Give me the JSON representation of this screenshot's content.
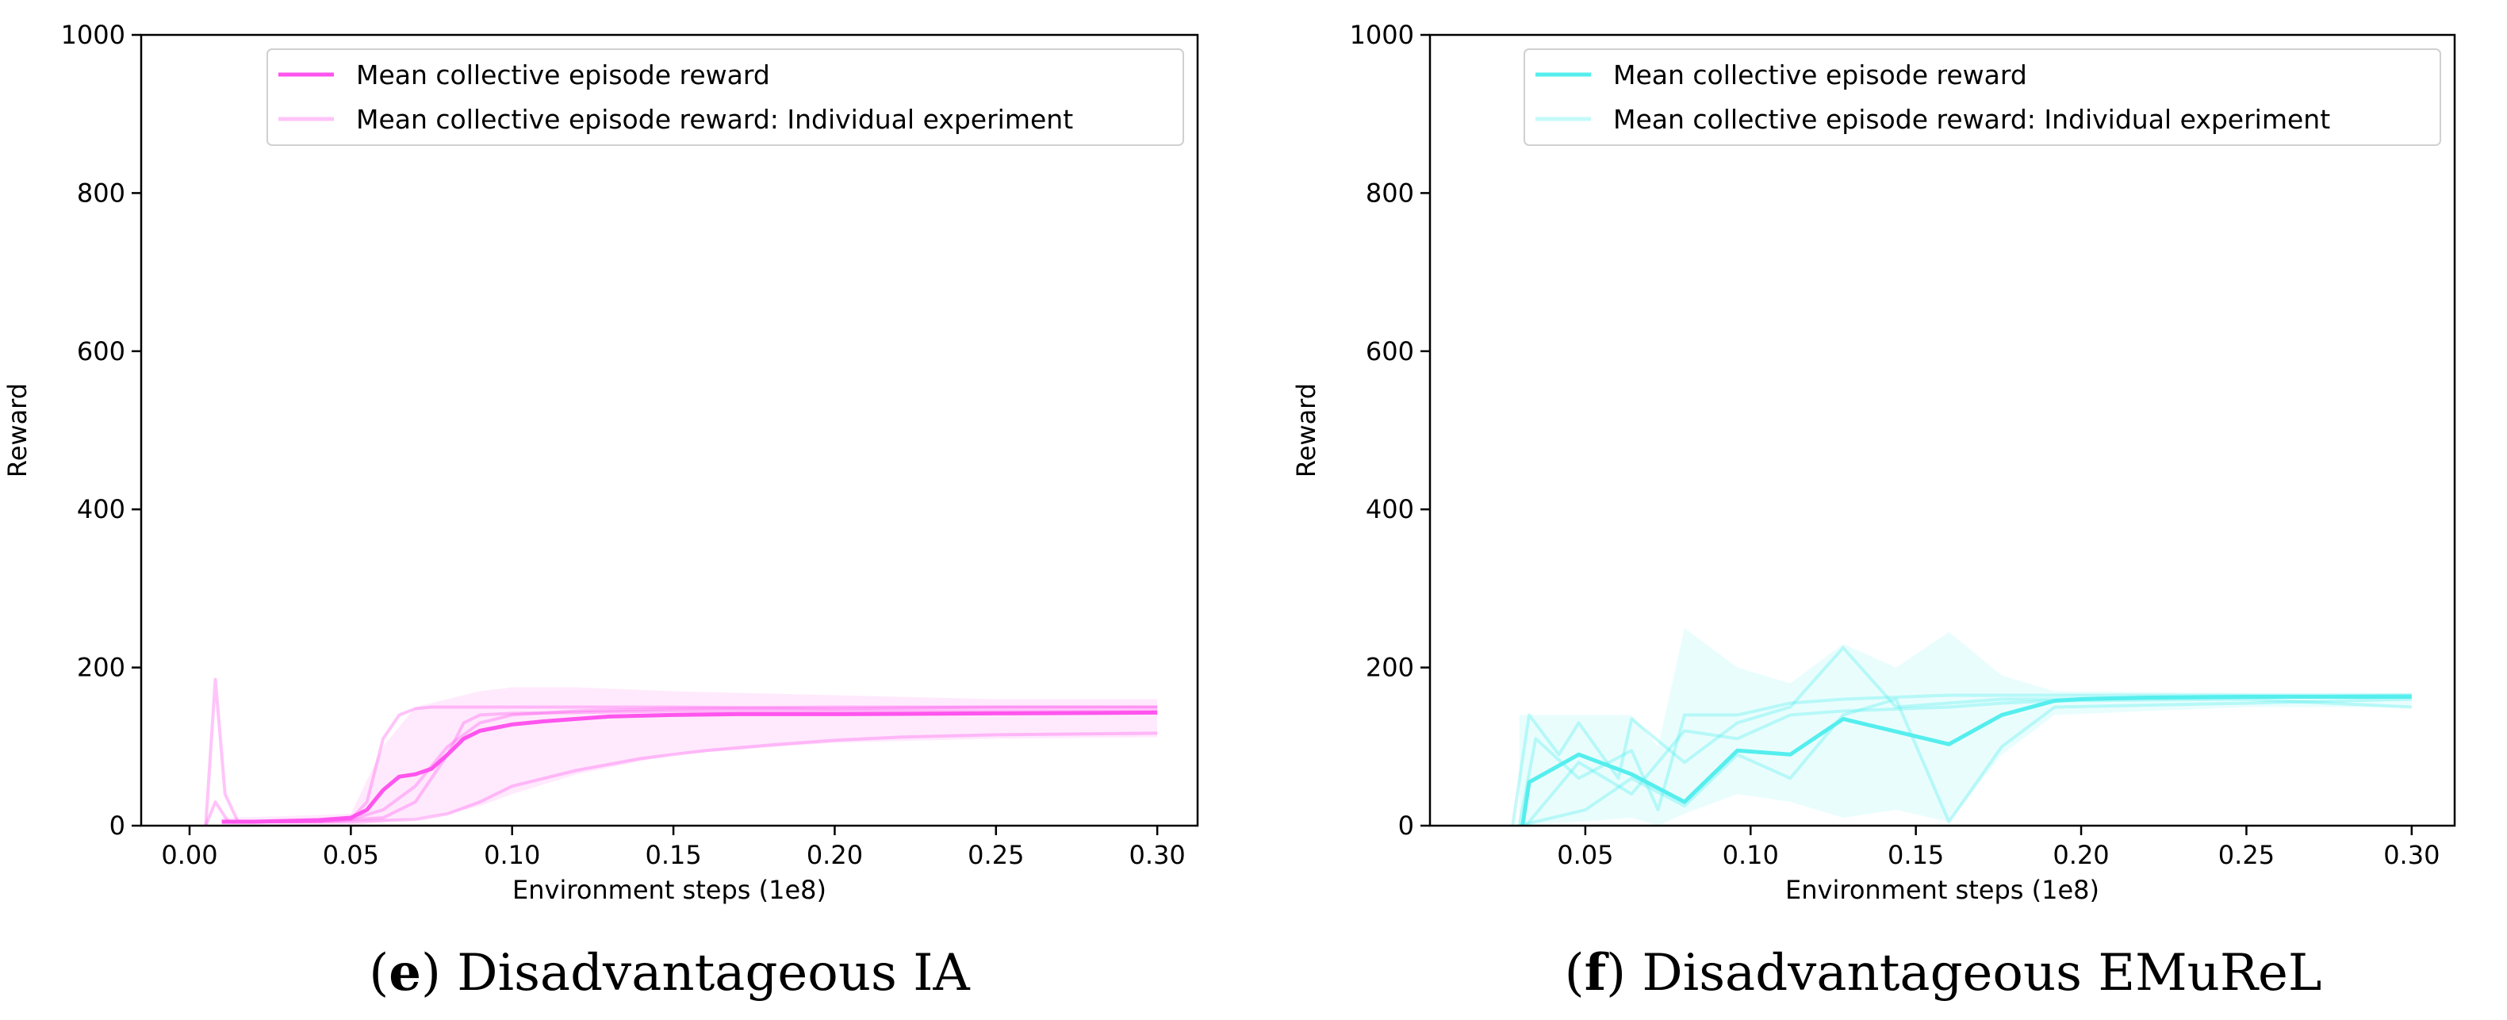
{
  "chart_data": [
    {
      "type": "line",
      "panel": "e",
      "caption_letter": "e",
      "caption_text": "Disadvantageous IA",
      "xlabel": "Environment steps (1e8)",
      "ylabel": "Reward",
      "xlim": [
        -0.015,
        0.3125
      ],
      "ylim": [
        0,
        1000
      ],
      "xticks": [
        0.0,
        0.05,
        0.1,
        0.15,
        0.2,
        0.25,
        0.3
      ],
      "xtick_labels": [
        "0.00",
        "0.05",
        "0.10",
        "0.15",
        "0.20",
        "0.25",
        "0.30"
      ],
      "yticks": [
        0,
        200,
        400,
        600,
        800,
        1000
      ],
      "ytick_labels": [
        "0",
        "200",
        "400",
        "600",
        "800",
        "1000"
      ],
      "color": "#ff55ee",
      "legend": [
        "Mean collective episode reward",
        "Mean collective episode reward: Individual experiment"
      ],
      "legend_position": "top-right",
      "mean": {
        "name": "Mean collective episode reward",
        "x": [
          0.01,
          0.02,
          0.03,
          0.04,
          0.05,
          0.055,
          0.06,
          0.065,
          0.07,
          0.075,
          0.08,
          0.085,
          0.09,
          0.1,
          0.11,
          0.12,
          0.13,
          0.15,
          0.17,
          0.2,
          0.25,
          0.3
        ],
        "y": [
          5,
          5,
          6,
          7,
          10,
          20,
          45,
          62,
          65,
          72,
          90,
          110,
          120,
          128,
          132,
          135,
          138,
          140,
          141,
          141,
          142,
          143
        ]
      },
      "individual": [
        {
          "name": "run1",
          "x": [
            0.005,
            0.008,
            0.012,
            0.02,
            0.03,
            0.04,
            0.05,
            0.055,
            0.06,
            0.065,
            0.07,
            0.075,
            0.08,
            0.1,
            0.15,
            0.2,
            0.25,
            0.3
          ],
          "y": [
            0,
            30,
            5,
            5,
            5,
            5,
            8,
            30,
            110,
            140,
            148,
            150,
            150,
            150,
            150,
            148,
            150,
            150
          ]
        },
        {
          "name": "run2",
          "x": [
            0.01,
            0.03,
            0.05,
            0.06,
            0.07,
            0.08,
            0.09,
            0.1,
            0.12,
            0.15,
            0.2,
            0.25,
            0.3
          ],
          "y": [
            5,
            5,
            8,
            20,
            50,
            100,
            130,
            140,
            145,
            148,
            150,
            150,
            150
          ]
        },
        {
          "name": "run3",
          "x": [
            0.01,
            0.04,
            0.06,
            0.07,
            0.08,
            0.085,
            0.09,
            0.1,
            0.15,
            0.2,
            0.25,
            0.3
          ],
          "y": [
            5,
            5,
            10,
            30,
            90,
            130,
            140,
            142,
            145,
            145,
            145,
            145
          ]
        },
        {
          "name": "run4",
          "x": [
            0.01,
            0.05,
            0.07,
            0.08,
            0.09,
            0.1,
            0.12,
            0.14,
            0.16,
            0.18,
            0.2,
            0.22,
            0.25,
            0.3
          ],
          "y": [
            5,
            5,
            8,
            15,
            30,
            50,
            70,
            85,
            95,
            102,
            108,
            112,
            115,
            117
          ]
        },
        {
          "name": "run5",
          "x": [
            0.005,
            0.008,
            0.011,
            0.015
          ],
          "y": [
            0,
            185,
            40,
            5
          ]
        }
      ],
      "band": {
        "x": [
          0.01,
          0.03,
          0.05,
          0.06,
          0.07,
          0.08,
          0.09,
          0.1,
          0.12,
          0.15,
          0.2,
          0.25,
          0.3
        ],
        "upper": [
          10,
          12,
          15,
          100,
          150,
          160,
          170,
          175,
          175,
          170,
          165,
          160,
          160
        ],
        "lower": [
          0,
          0,
          0,
          5,
          10,
          15,
          25,
          40,
          65,
          90,
          105,
          110,
          112
        ]
      }
    },
    {
      "type": "line",
      "panel": "f",
      "caption_letter": "f",
      "caption_text": "Disadvantageous EMuReL",
      "xlabel": "Environment steps (1e8)",
      "ylabel": "Reward",
      "xlim": [
        0.003,
        0.313
      ],
      "ylim": [
        0,
        1000
      ],
      "xticks": [
        0.05,
        0.1,
        0.15,
        0.2,
        0.25,
        0.3
      ],
      "xtick_labels": [
        "0.05",
        "0.10",
        "0.15",
        "0.20",
        "0.25",
        "0.30"
      ],
      "yticks": [
        0,
        200,
        400,
        600,
        800,
        1000
      ],
      "ytick_labels": [
        "0",
        "200",
        "400",
        "600",
        "800",
        "1000"
      ],
      "color": "#55eeee",
      "legend": [
        "Mean collective episode reward",
        "Mean collective episode reward: Individual experiment"
      ],
      "legend_position": "top-right",
      "mean": {
        "name": "Mean collective episode reward",
        "x": [
          0.031,
          0.033,
          0.048,
          0.064,
          0.08,
          0.096,
          0.112,
          0.128,
          0.16,
          0.176,
          0.192,
          0.2,
          0.22,
          0.25,
          0.3
        ],
        "y": [
          0,
          55,
          90,
          65,
          30,
          95,
          90,
          135,
          103,
          140,
          158,
          160,
          162,
          163,
          163
        ]
      },
      "individual": [
        {
          "name": "run1",
          "x": [
            0.028,
            0.033,
            0.042,
            0.048,
            0.06,
            0.064,
            0.08,
            0.096,
            0.112,
            0.128,
            0.144,
            0.16,
            0.176,
            0.192,
            0.25,
            0.3
          ],
          "y": [
            0,
            140,
            90,
            130,
            60,
            135,
            80,
            130,
            150,
            225,
            150,
            155,
            160,
            160,
            162,
            165
          ]
        },
        {
          "name": "run2",
          "x": [
            0.03,
            0.035,
            0.048,
            0.064,
            0.072,
            0.08,
            0.096,
            0.112,
            0.128,
            0.16,
            0.176,
            0.192,
            0.25,
            0.3
          ],
          "y": [
            0,
            110,
            60,
            95,
            20,
            140,
            140,
            155,
            160,
            165,
            165,
            165,
            165,
            165
          ]
        },
        {
          "name": "run3",
          "x": [
            0.032,
            0.048,
            0.064,
            0.08,
            0.096,
            0.112,
            0.128,
            0.16,
            0.176,
            0.192,
            0.25,
            0.3
          ],
          "y": [
            0,
            80,
            40,
            120,
            110,
            140,
            145,
            150,
            155,
            158,
            160,
            150
          ]
        },
        {
          "name": "run4",
          "x": [
            0.03,
            0.05,
            0.064,
            0.08,
            0.096,
            0.112,
            0.128,
            0.144,
            0.16,
            0.176,
            0.192,
            0.25,
            0.3
          ],
          "y": [
            0,
            20,
            60,
            25,
            90,
            60,
            140,
            160,
            5,
            100,
            150,
            155,
            160
          ]
        }
      ],
      "band": {
        "x": [
          0.03,
          0.048,
          0.064,
          0.072,
          0.08,
          0.096,
          0.112,
          0.128,
          0.144,
          0.16,
          0.176,
          0.192,
          0.25,
          0.3
        ],
        "upper": [
          140,
          140,
          140,
          100,
          250,
          200,
          180,
          230,
          200,
          245,
          190,
          170,
          168,
          168
        ],
        "lower": [
          0,
          5,
          10,
          0,
          15,
          40,
          30,
          10,
          20,
          5,
          90,
          140,
          150,
          150
        ]
      }
    }
  ]
}
